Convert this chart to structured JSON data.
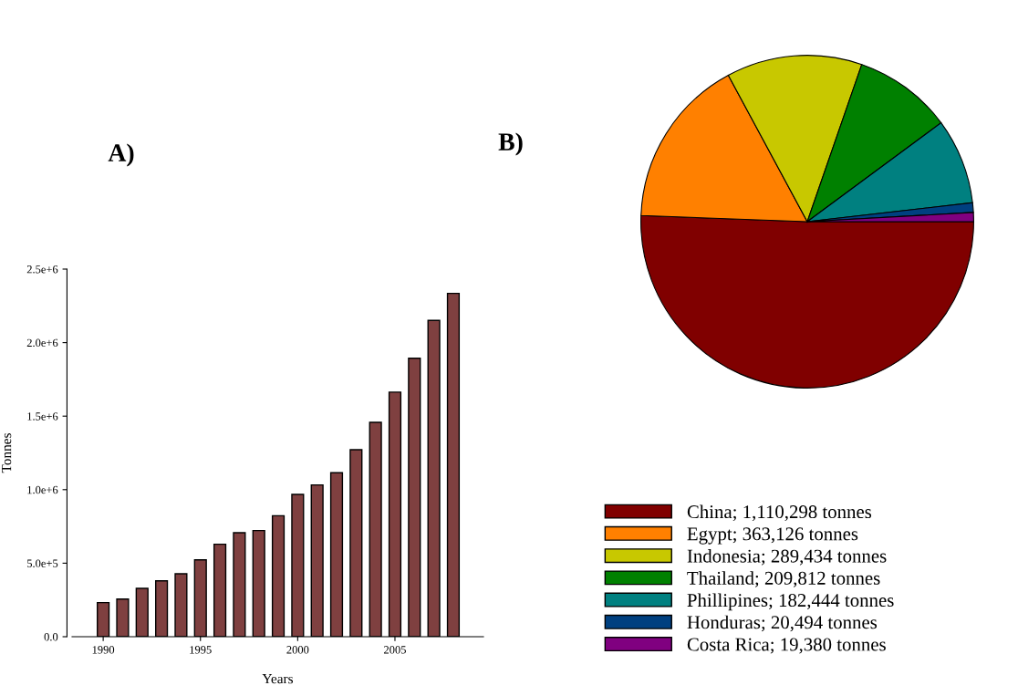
{
  "chart_data": [
    {
      "type": "bar",
      "title": "A)",
      "xlabel": "Years",
      "ylabel": "Tonnes",
      "x": [
        1990,
        1991,
        1992,
        1993,
        1994,
        1995,
        1996,
        1997,
        1998,
        1999,
        2000,
        2001,
        2002,
        2003,
        2004,
        2005,
        2006,
        2007,
        2008
      ],
      "values": [
        232000,
        256000,
        329000,
        380000,
        428000,
        523000,
        629000,
        707000,
        722000,
        823000,
        968000,
        1032000,
        1115000,
        1272000,
        1458000,
        1663000,
        1894000,
        2151000,
        2335000
      ],
      "color": "#7f4040",
      "xlim": [
        1988.4,
        2009.55
      ],
      "xticks": [
        1990,
        1995,
        2000,
        2005
      ],
      "ylim": [
        0,
        2500000
      ],
      "yticks": [
        {
          "value": 0,
          "label": "0.0"
        },
        {
          "value": 500000,
          "label": "5.0e+5"
        },
        {
          "value": 1000000,
          "label": "1.0e+6"
        },
        {
          "value": 1500000,
          "label": "1.5e+6"
        },
        {
          "value": 2000000,
          "label": "2.0e+6"
        },
        {
          "value": 2500000,
          "label": "2.5e+6"
        }
      ],
      "grid": false
    },
    {
      "type": "pie",
      "title": "B)",
      "categories": [
        "China",
        "Egypt",
        "Indonesia",
        "Thailand",
        "Phillipines",
        "Honduras",
        "Costa Rica"
      ],
      "values": [
        1110298,
        363126,
        289434,
        209812,
        182444,
        20494,
        19380
      ],
      "value_labels": [
        "1,110,298 tonnes",
        "363,126 tonnes",
        "289,434 tonnes",
        "209,812 tonnes",
        "182,444 tonnes",
        "20,494 tonnes",
        "19,380 tonnes"
      ],
      "colors": [
        "#800000",
        "#ff8000",
        "#c8c800",
        "#008000",
        "#008080",
        "#004080",
        "#800080"
      ],
      "legend": "bottom"
    }
  ]
}
